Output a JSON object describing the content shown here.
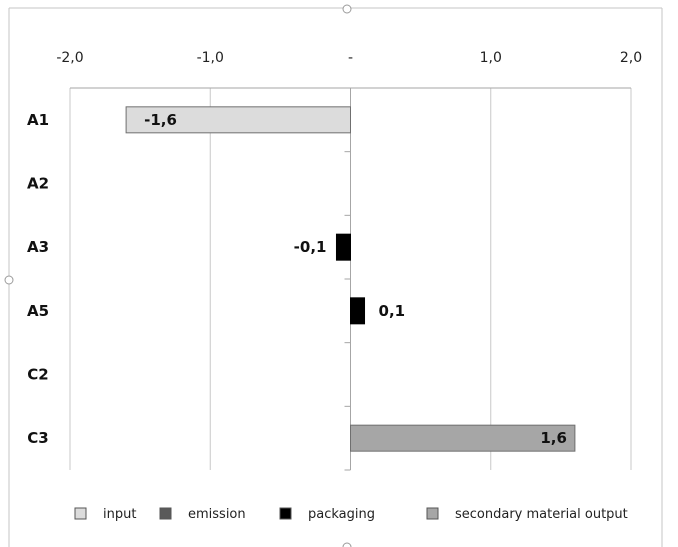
{
  "chart_data": {
    "type": "bar",
    "orientation": "horizontal",
    "title": "",
    "xlabel": "",
    "ylabel": "",
    "xlim": [
      -2.0,
      2.0
    ],
    "xticks": [
      -2.0,
      -1.0,
      0,
      1.0,
      2.0
    ],
    "xtick_labels": [
      "-2,0",
      "-1,0",
      "-",
      "1,0",
      "2,0"
    ],
    "x_axis_position": "top",
    "grid": "vertical",
    "categories": [
      "A1",
      "A2",
      "A3",
      "A5",
      "C2",
      "C3"
    ],
    "series": [
      {
        "name": "input",
        "color": "#dcdcdc",
        "values": [
          -1.6,
          null,
          null,
          null,
          null,
          null
        ]
      },
      {
        "name": "emission",
        "color": "#5a5a5a",
        "values": [
          null,
          null,
          null,
          null,
          null,
          null
        ]
      },
      {
        "name": "packaging",
        "color": "#000000",
        "values": [
          null,
          null,
          -0.1,
          0.1,
          null,
          null
        ]
      },
      {
        "name": "secondary material output",
        "color": "#a6a6a6",
        "values": [
          null,
          null,
          null,
          null,
          null,
          1.6
        ]
      }
    ],
    "data_labels": [
      {
        "category": "A1",
        "text": "-1,6"
      },
      {
        "category": "A3",
        "text": "-0,1"
      },
      {
        "category": "A5",
        "text": "0,1"
      },
      {
        "category": "C3",
        "text": "1,6"
      }
    ],
    "legend": {
      "position": "bottom",
      "items": [
        "input",
        "emission",
        "packaging",
        "secondary material output"
      ]
    }
  }
}
